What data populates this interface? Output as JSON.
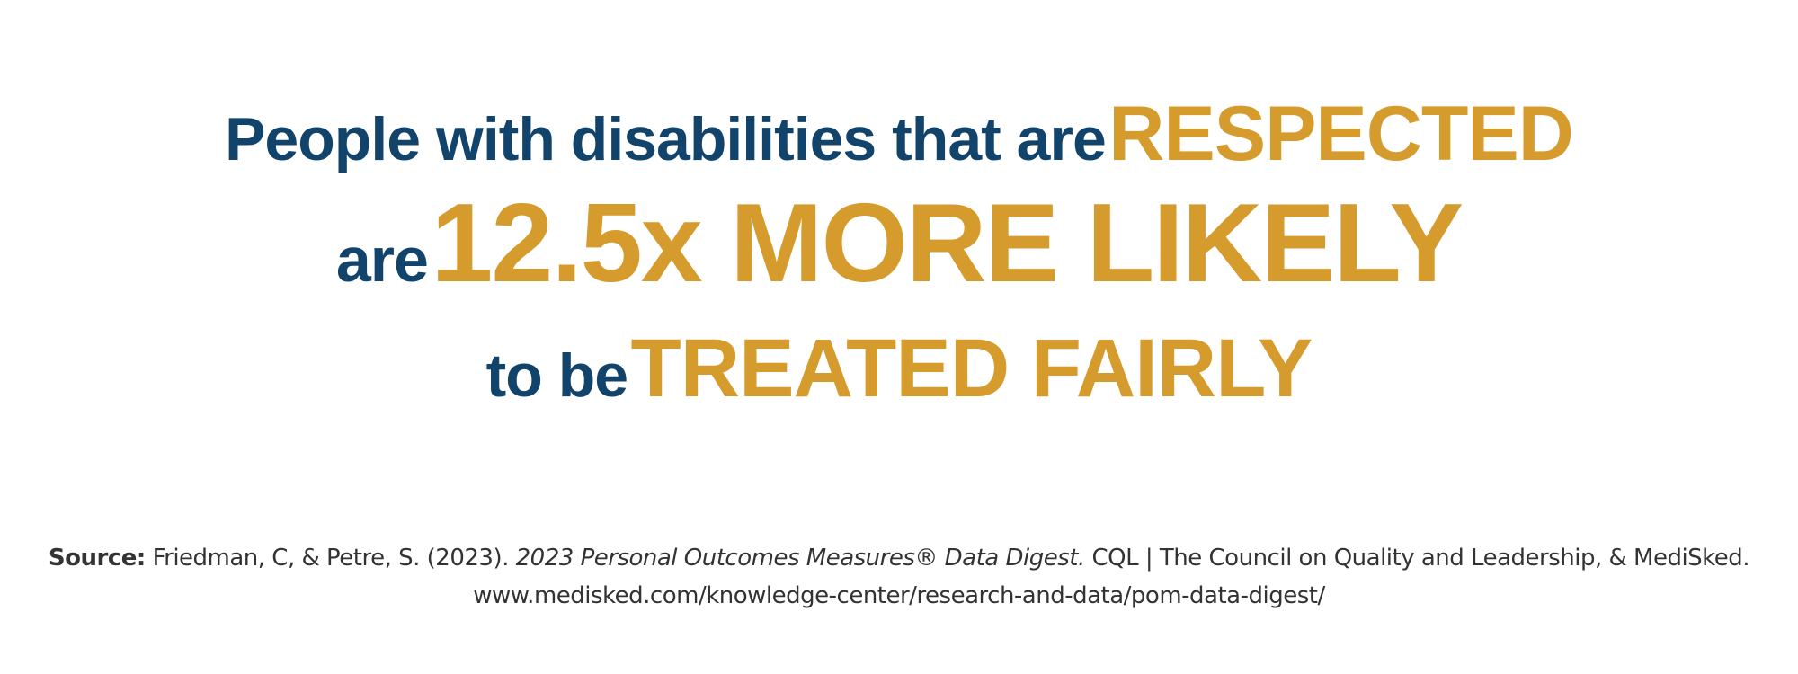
{
  "headline": {
    "line1": {
      "lead": "People with disabilities that are",
      "emphasis": "RESPECTED"
    },
    "line2": {
      "lead": "are",
      "emphasis": "12.5x MORE LIKELY"
    },
    "line3": {
      "lead": "to be",
      "emphasis": "TREATED FAIRLY"
    }
  },
  "source": {
    "label": "Source:",
    "authors": "Friedman, C, & Petre, S. (2023).",
    "title": "2023 Personal Outcomes Measures® Data Digest.",
    "publisher": "CQL | The Council on Quality and Leadership, & MediSked.",
    "url": "www.medisked.com/knowledge-center/research-and-data/pom-data-digest/"
  }
}
